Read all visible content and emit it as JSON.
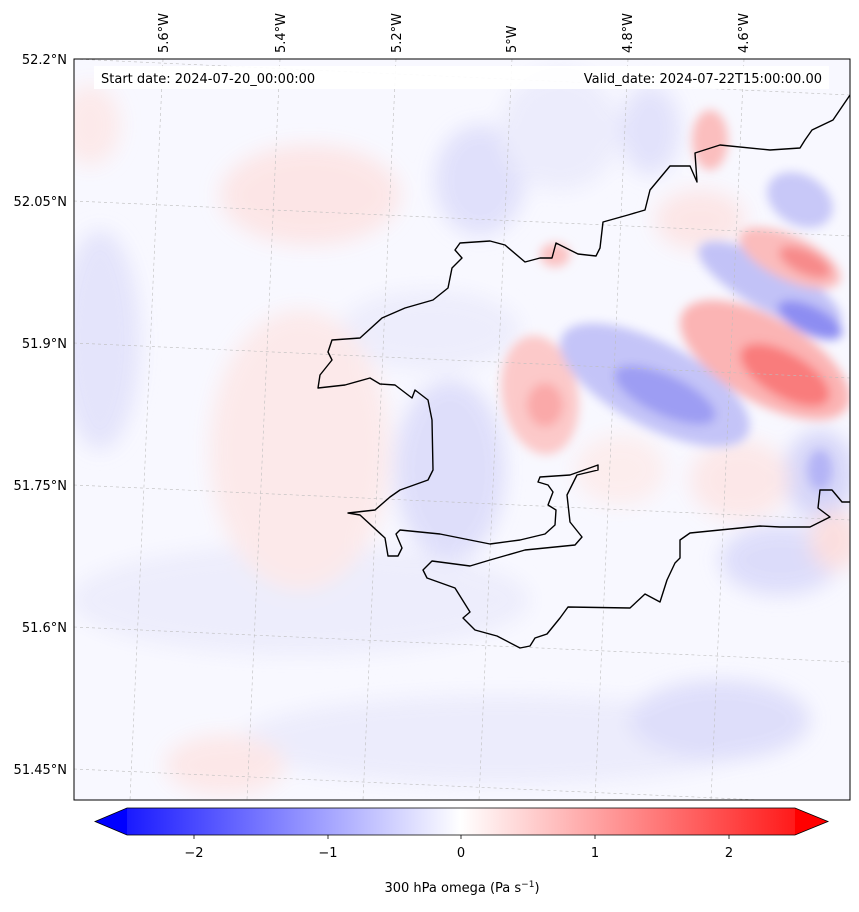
{
  "map": {
    "start_label": "Start date: 2024-07-20_00:00:00",
    "valid_label": "Valid_date: 2024-07-22T15:00:00.00",
    "lon_labels": [
      "5.6°W",
      "5.4°W",
      "5.2°W",
      "5°W",
      "4.8°W",
      "4.6°W"
    ],
    "lat_labels": [
      "52.2°N",
      "52.05°N",
      "51.9°N",
      "51.75°N",
      "51.6°N",
      "51.45°N"
    ]
  },
  "colorbar": {
    "ticks": [
      "−2",
      "−1",
      "0",
      "1",
      "2"
    ],
    "label": "300 hPa omega (Pa s",
    "label_sup": "−1",
    "label_end": ")",
    "min_color": "#0000ff",
    "mid_color": "#ffffff",
    "max_color": "#ff0000"
  }
}
